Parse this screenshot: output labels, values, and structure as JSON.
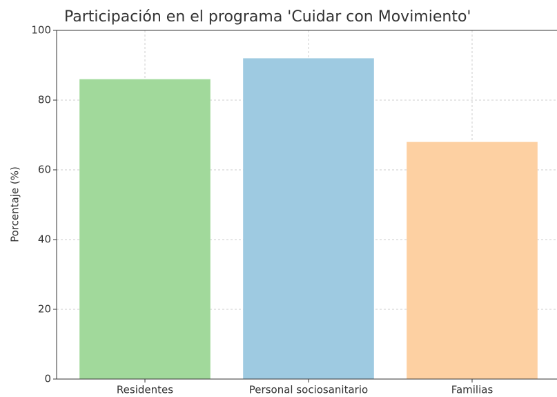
{
  "chart_data": {
    "type": "bar",
    "title": "Participación en el programa 'Cuidar con Movimiento'",
    "ylabel": "Porcentaje (%)",
    "categories": [
      "Residentes",
      "Personal sociosanitario",
      "Familias"
    ],
    "values": [
      86,
      92,
      68
    ],
    "colors": [
      "#a1d99b",
      "#9ecae1",
      "#fdd0a2"
    ],
    "ylim": [
      0,
      100
    ],
    "yticks": [
      0,
      20,
      40,
      60,
      80,
      100
    ],
    "grid": true
  }
}
